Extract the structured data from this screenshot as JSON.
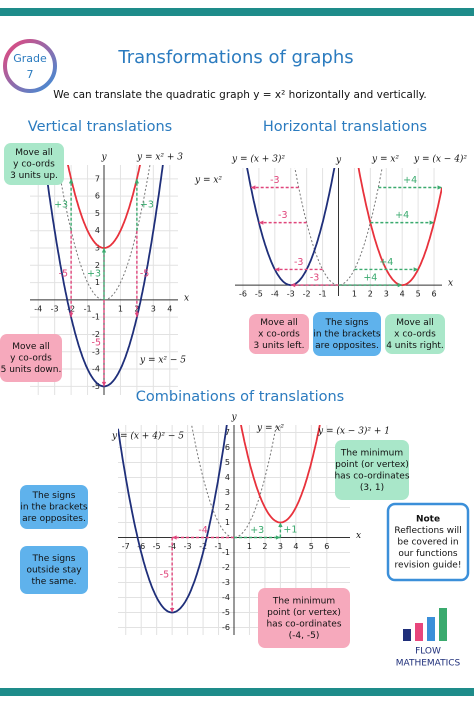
{
  "badge": [
    "Grade",
    "7"
  ],
  "title": "Transformations of graphs",
  "intro": "We can translate the quadratic graph y = x² horizontally and vertically.",
  "logo": [
    "FLOW",
    "MATHEMATICS"
  ],
  "sections": [
    {
      "heading": "Vertical translations",
      "xlim": [
        -4.5,
        4.5
      ],
      "ylim": [
        -5.5,
        7.8
      ],
      "xticks": [
        -4,
        -3,
        -2,
        -1,
        1,
        2,
        3,
        4
      ],
      "yticks": [
        -5,
        -4,
        -3,
        -2,
        -1,
        1,
        2,
        3,
        4,
        5,
        6,
        7
      ],
      "axis_labels": [
        "x",
        "y"
      ],
      "curves": [
        {
          "label": "y = x²",
          "vertex": [
            0,
            0
          ],
          "color": "#777777",
          "dotted": true
        },
        {
          "label": "y = x² + 3",
          "vertex": [
            0,
            3
          ],
          "color": "#e8323c",
          "dotted": false
        },
        {
          "label": "y = x² − 5",
          "vertex": [
            0,
            -5
          ],
          "color": "#1f2f7a",
          "dotted": false
        }
      ],
      "arrows": [
        {
          "text": "+3",
          "from": [
            -2,
            4
          ],
          "to": [
            -2,
            7
          ],
          "color": "#3aaa6e"
        },
        {
          "text": "+3",
          "from": [
            2,
            4
          ],
          "to": [
            2,
            7
          ],
          "color": "#3aaa6e"
        },
        {
          "text": "+3",
          "from": [
            0,
            0
          ],
          "to": [
            0,
            3
          ],
          "color": "#3aaa6e"
        },
        {
          "text": "-5",
          "from": [
            -2,
            4
          ],
          "to": [
            -2,
            -1
          ],
          "color": "#e0457b"
        },
        {
          "text": "-5",
          "from": [
            2,
            4
          ],
          "to": [
            2,
            -1
          ],
          "color": "#e0457b"
        },
        {
          "text": "-5",
          "from": [
            0,
            0
          ],
          "to": [
            0,
            -5
          ],
          "color": "#e0457b"
        }
      ],
      "notes": [
        {
          "lines": [
            "Move all",
            "y co-ords",
            "3 units up."
          ],
          "color": "#a9e7c9"
        },
        {
          "lines": [
            "Move all",
            "y co-ords",
            "5 units down."
          ],
          "color": "#f6a9bc"
        }
      ]
    },
    {
      "heading": "Horizontal translations",
      "xlim": [
        -6.5,
        6.5
      ],
      "ylim": [
        -0.7,
        7.5
      ],
      "xticks": [
        -6,
        -5,
        -4,
        -3,
        -2,
        -1,
        1,
        2,
        3,
        4,
        5,
        6
      ],
      "yticks": [],
      "axis_labels": [
        "x",
        "y"
      ],
      "curves": [
        {
          "label": "y = x²",
          "vertex": [
            0,
            0
          ],
          "color": "#777777",
          "dotted": true
        },
        {
          "label": "y = (x + 3)²",
          "vertex": [
            -3,
            0
          ],
          "color": "#1f2f7a",
          "dotted": false
        },
        {
          "label": "y = (x − 4)²",
          "vertex": [
            4,
            0
          ],
          "color": "#e8323c",
          "dotted": false
        }
      ],
      "arrows": [
        {
          "text": "-3",
          "from": [
            -2.5,
            6.25
          ],
          "to": [
            -5.5,
            6.25
          ],
          "color": "#e0457b"
        },
        {
          "text": "-3",
          "from": [
            -2,
            4
          ],
          "to": [
            -5,
            4
          ],
          "color": "#e0457b"
        },
        {
          "text": "-3",
          "from": [
            -1,
            1
          ],
          "to": [
            -4,
            1
          ],
          "color": "#e0457b"
        },
        {
          "text": "-3",
          "from": [
            0,
            0
          ],
          "to": [
            -3,
            0
          ],
          "color": "#e0457b"
        },
        {
          "text": "+4",
          "from": [
            2.5,
            6.25
          ],
          "to": [
            6.5,
            6.25
          ],
          "color": "#3aaa6e"
        },
        {
          "text": "+4",
          "from": [
            2,
            4
          ],
          "to": [
            6,
            4
          ],
          "color": "#3aaa6e"
        },
        {
          "text": "+4",
          "from": [
            1,
            1
          ],
          "to": [
            5,
            1
          ],
          "color": "#3aaa6e"
        },
        {
          "text": "+4",
          "from": [
            0,
            0
          ],
          "to": [
            4,
            0
          ],
          "color": "#3aaa6e"
        }
      ],
      "notes": [
        {
          "lines": [
            "Move all",
            "x co-ords",
            "3 units left."
          ],
          "color": "#f6a9bc"
        },
        {
          "lines": [
            "The signs",
            "in the brackets",
            "are opposites."
          ],
          "color": "#5fb2ec"
        },
        {
          "lines": [
            "Move all",
            "x co-ords",
            "4 units right."
          ],
          "color": "#a9e7c9"
        }
      ]
    },
    {
      "heading": "Combinations of translations",
      "xlim": [
        -7.5,
        7.5
      ],
      "ylim": [
        -6.5,
        7.5
      ],
      "xticks": [
        -7,
        -6,
        -5,
        -4,
        -3,
        -2,
        -1,
        1,
        2,
        3,
        4,
        5,
        6
      ],
      "yticks": [
        -6,
        -5,
        -4,
        -3,
        -2,
        -1,
        1,
        2,
        3,
        4,
        5,
        6,
        7
      ],
      "axis_labels": [
        "x",
        "y"
      ],
      "curves": [
        {
          "label": "y = (x + 4)² − 5",
          "vertex": [
            -4,
            -5
          ],
          "color": "#1f2f7a",
          "dotted": false
        },
        {
          "label": "y = x²",
          "vertex": [
            0,
            0
          ],
          "color": "#777777",
          "dotted": true
        },
        {
          "label": "y = (x − 3)² + 1",
          "vertex": [
            3,
            1
          ],
          "color": "#e8323c",
          "dotted": false
        }
      ],
      "arrows": [
        {
          "text": "-4",
          "from": [
            0,
            0
          ],
          "to": [
            -4,
            0
          ],
          "color": "#e0457b"
        },
        {
          "text": "-5",
          "from": [
            -4,
            0
          ],
          "to": [
            -4,
            -5
          ],
          "color": "#e0457b"
        },
        {
          "text": "+3",
          "from": [
            0,
            0
          ],
          "to": [
            3,
            0
          ],
          "color": "#3aaa6e"
        },
        {
          "text": "+1",
          "from": [
            3,
            0
          ],
          "to": [
            3,
            1
          ],
          "color": "#3aaa6e"
        }
      ],
      "notes": [
        {
          "lines": [
            "The minimum",
            "point (or vertex)",
            "has co-ordinates",
            "(3, 1)"
          ],
          "color": "#a9e7c9"
        },
        {
          "lines": [
            "The minimum",
            "point (or vertex)",
            "has co-ordinates",
            "(-4, -5)"
          ],
          "color": "#f6a9bc"
        },
        {
          "lines": [
            "The signs",
            "in the brackets",
            "are opposites."
          ],
          "color": "#5fb2ec"
        },
        {
          "lines": [
            "The signs",
            "outside stay",
            "the same."
          ],
          "color": "#5fb2ec"
        },
        {
          "lines": [
            "Note",
            "Reflections will",
            "be covered in",
            "our functions",
            "revision guide!"
          ],
          "color": "#ffffff"
        }
      ]
    }
  ]
}
